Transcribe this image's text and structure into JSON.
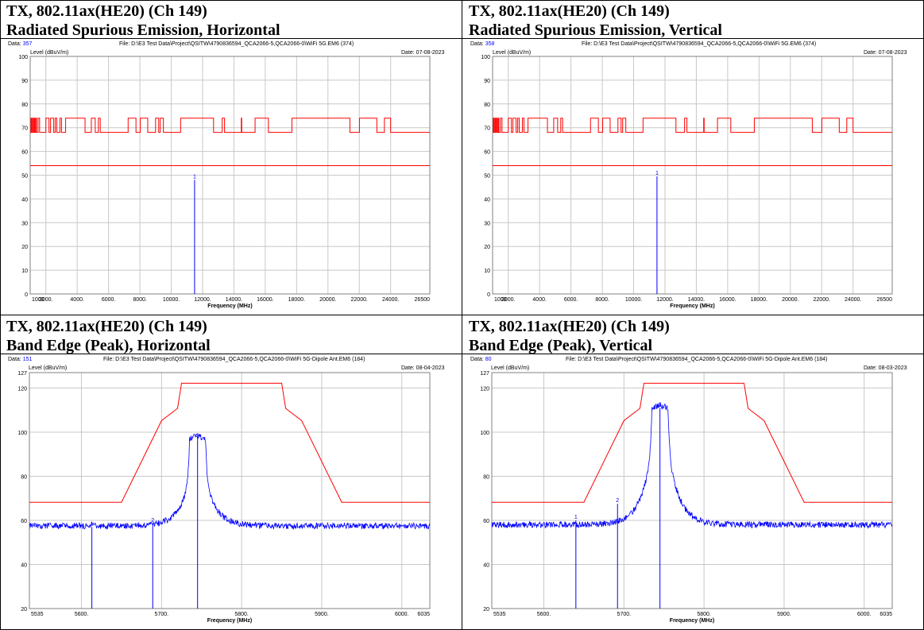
{
  "panels": [
    {
      "title_line1": "TX, 802.11ax(HE20) (Ch 149)",
      "title_line2": "Radiated Spurious Emission, Horizontal",
      "data_label": "Data:",
      "data_no": "357",
      "file_text": "File: D:\\E3 Test Data\\Project\\QSITW\\4790836594_QCA2066-5,QCA2066-0\\WiFi 5G.EM6  (374)",
      "date_text": "Date: 07-08-2023",
      "ylabel": "Level (dBuV/m)",
      "xlabel": "Frequency (MHz)"
    },
    {
      "title_line1": "TX, 802.11ax(HE20) (Ch 149)",
      "title_line2": "Radiated Spurious Emission, Vertical",
      "data_label": "Data:",
      "data_no": "358",
      "file_text": "File: D:\\E3 Test Data\\Project\\QSITW\\4790836594_QCA2066-5,QCA2066-0\\WiFi 5G.EM6  (374)",
      "date_text": "Date: 07-08-2023",
      "ylabel": "Level (dBuV/m)",
      "xlabel": "Frequency (MHz)"
    },
    {
      "title_line1": "TX, 802.11ax(HE20) (Ch 149)",
      "title_line2": "Band Edge (Peak), Horizontal",
      "data_label": "Data:",
      "data_no": "151",
      "file_text": "File: D:\\E3 Test Data\\Project\\QSITW\\4790836594_QCA2066-5,QCA2066-0\\WiFi 5G-Dipole Ant.EM6  (184)",
      "date_text": "Date: 08-04-2023",
      "ylabel": "Level (dBuV/m)",
      "xlabel": "Frequency (MHz)"
    },
    {
      "title_line1": "TX, 802.11ax(HE20) (Ch 149)",
      "title_line2": "Band Edge (Peak), Vertical",
      "data_label": "Data:",
      "data_no": "80",
      "file_text": "File: D:\\E3 Test Data\\Project\\QSITW\\4790836594_QCA2066-5,QCA2066-0\\WiFi 5G-Dipole Ant.EM6  (184)",
      "date_text": "Date: 08-03-2023",
      "ylabel": "Level (dBuV/m)",
      "xlabel": "Frequency (MHz)"
    }
  ],
  "colors": {
    "limit": "#ff0000",
    "trace": "#0000ff",
    "grid": "#c8c8c8"
  },
  "chart_data": [
    {
      "type": "line",
      "xlim": [
        1000,
        26500
      ],
      "ylim": [
        0,
        100
      ],
      "yticks": [
        0,
        10,
        20,
        30,
        40,
        50,
        60,
        70,
        80,
        90,
        100
      ],
      "xtick_values": [
        1000,
        2000,
        4000,
        6000,
        8000,
        10000,
        12000,
        14000,
        16000,
        18000,
        20000,
        22000,
        24000,
        26500
      ],
      "xtick_labels": [
        "1000",
        "2000.",
        "4000.",
        "6000.",
        "8000.",
        "10000.",
        "12000.",
        "14000.",
        "16000.",
        "18000.",
        "20000.",
        "22000.",
        "24000.",
        "26500"
      ],
      "limit_line_average": {
        "x": [
          1000,
          26500
        ],
        "y": [
          54,
          54
        ]
      },
      "limit_line_peak": {
        "x": [
          1000,
          1050,
          1050,
          1100,
          1100,
          1160,
          1160,
          1200,
          1200,
          1260,
          1260,
          1300,
          1300,
          1360,
          1360,
          1400,
          1400,
          1500,
          1500,
          1600,
          1600,
          2000,
          2000,
          2200,
          2200,
          2300,
          2300,
          2500,
          2500,
          2600,
          2600,
          2700,
          2700,
          2900,
          2900,
          3000,
          3000,
          3260,
          3260,
          4500,
          4500,
          4900,
          4900,
          5150,
          5150,
          5350,
          5350,
          5470,
          5470,
          7250,
          7250,
          7750,
          7750,
          8025,
          8025,
          8500,
          8500,
          9000,
          9000,
          9200,
          9200,
          9300,
          9300,
          9500,
          9500,
          10600,
          10600,
          12700,
          12700,
          13250,
          13250,
          13400,
          13400,
          14470,
          14470,
          14500,
          14500,
          15350,
          15350,
          16200,
          16200,
          17700,
          17700,
          21400,
          21400,
          22010,
          22010,
          23120,
          23120,
          23600,
          23600,
          24000,
          24000,
          26500
        ],
        "y": [
          68,
          68,
          74,
          74,
          68,
          68,
          74,
          74,
          68,
          68,
          74,
          74,
          68,
          68,
          74,
          74,
          68,
          68,
          74,
          74,
          68,
          68,
          74,
          74,
          68,
          68,
          74,
          74,
          68,
          68,
          74,
          74,
          68,
          68,
          74,
          74,
          68,
          68,
          74,
          74,
          68,
          68,
          74,
          74,
          68,
          68,
          74,
          74,
          68,
          68,
          74,
          74,
          68,
          68,
          74,
          74,
          68,
          68,
          74,
          74,
          68,
          68,
          74,
          74,
          68,
          68,
          74,
          74,
          68,
          68,
          74,
          74,
          68,
          68,
          74,
          74,
          68,
          68,
          74,
          74,
          68,
          68,
          74,
          74,
          68,
          68,
          74,
          74,
          68,
          68,
          74,
          74,
          68,
          68
        ]
      },
      "markers": [
        {
          "label": "1",
          "x": 11490,
          "y": 48
        }
      ]
    },
    {
      "type": "line",
      "xlim": [
        1000,
        26500
      ],
      "ylim": [
        0,
        100
      ],
      "yticks": [
        0,
        10,
        20,
        30,
        40,
        50,
        60,
        70,
        80,
        90,
        100
      ],
      "xtick_values": [
        1000,
        2000,
        4000,
        6000,
        8000,
        10000,
        12000,
        14000,
        16000,
        18000,
        20000,
        22000,
        24000,
        26500
      ],
      "xtick_labels": [
        "1000",
        "2000.",
        "4000.",
        "6000.",
        "8000.",
        "10000.",
        "12000.",
        "14000.",
        "16000.",
        "18000.",
        "20000.",
        "22000.",
        "24000.",
        "26500"
      ],
      "limit_line_average": {
        "x": [
          1000,
          26500
        ],
        "y": [
          54,
          54
        ]
      },
      "limit_line_peak": {
        "x": [
          1000,
          1050,
          1050,
          1100,
          1100,
          1160,
          1160,
          1200,
          1200,
          1260,
          1260,
          1300,
          1300,
          1360,
          1360,
          1400,
          1400,
          1500,
          1500,
          1600,
          1600,
          2000,
          2000,
          2200,
          2200,
          2300,
          2300,
          2500,
          2500,
          2600,
          2600,
          2700,
          2700,
          2900,
          2900,
          3000,
          3000,
          3260,
          3260,
          4500,
          4500,
          4900,
          4900,
          5150,
          5150,
          5350,
          5350,
          5470,
          5470,
          7250,
          7250,
          7750,
          7750,
          8025,
          8025,
          8500,
          8500,
          9000,
          9000,
          9200,
          9200,
          9300,
          9300,
          9500,
          9500,
          10600,
          10600,
          12700,
          12700,
          13250,
          13250,
          13400,
          13400,
          14470,
          14470,
          14500,
          14500,
          15350,
          15350,
          16200,
          16200,
          17700,
          17700,
          21400,
          21400,
          22010,
          22010,
          23120,
          23120,
          23600,
          23600,
          24000,
          24000,
          26500
        ],
        "y": [
          68,
          68,
          74,
          74,
          68,
          68,
          74,
          74,
          68,
          68,
          74,
          74,
          68,
          68,
          74,
          74,
          68,
          68,
          74,
          74,
          68,
          68,
          74,
          74,
          68,
          68,
          74,
          74,
          68,
          68,
          74,
          74,
          68,
          68,
          74,
          74,
          68,
          68,
          74,
          74,
          68,
          68,
          74,
          74,
          68,
          68,
          74,
          74,
          68,
          68,
          74,
          74,
          68,
          68,
          74,
          74,
          68,
          68,
          74,
          74,
          68,
          68,
          74,
          74,
          68,
          68,
          74,
          74,
          68,
          68,
          74,
          74,
          68,
          68,
          74,
          74,
          68,
          68,
          74,
          74,
          68,
          68,
          74,
          74,
          68,
          68,
          74,
          74,
          68,
          68,
          74,
          74,
          68,
          68
        ]
      },
      "markers": [
        {
          "label": "1",
          "x": 11490,
          "y": 49.5
        }
      ]
    },
    {
      "type": "line",
      "xlim": [
        5535,
        6035
      ],
      "ylim": [
        20,
        127
      ],
      "yticks": [
        20,
        40,
        60,
        80,
        100,
        120,
        127
      ],
      "xtick_values": [
        5535,
        5600,
        5700,
        5800,
        5900,
        6000,
        6035
      ],
      "xtick_labels": [
        "5535",
        "5600.",
        "5700.",
        "5800.",
        "5900.",
        "6000.",
        "6035"
      ],
      "limit_line": {
        "x": [
          5535,
          5650,
          5700,
          5720,
          5725,
          5850,
          5855,
          5875,
          5925,
          6035
        ],
        "y": [
          68.2,
          68.2,
          105.2,
          110.8,
          122.2,
          122.2,
          110.8,
          105.2,
          68.2,
          68.2
        ]
      },
      "trace": {
        "noise_floor": 57.5,
        "center": 5745,
        "occupied_bw": 20,
        "peak_level": 98,
        "skirt_level": 78
      },
      "markers": [
        {
          "label": "1",
          "x": 5613,
          "y": 57
        },
        {
          "label": "2",
          "x": 5689,
          "y": 58.5
        },
        {
          "label": "3",
          "x": 5745,
          "y": 97
        }
      ]
    },
    {
      "type": "line",
      "xlim": [
        5535,
        6035
      ],
      "ylim": [
        20,
        127
      ],
      "yticks": [
        20,
        40,
        60,
        80,
        100,
        120,
        127
      ],
      "xtick_values": [
        5535,
        5600,
        5700,
        5800,
        5900,
        6000,
        6035
      ],
      "xtick_labels": [
        "5535",
        "5600.",
        "5700.",
        "5800.",
        "5900.",
        "6000.",
        "6035"
      ],
      "limit_line": {
        "x": [
          5535,
          5650,
          5700,
          5720,
          5725,
          5850,
          5855,
          5875,
          5925,
          6035
        ],
        "y": [
          68.2,
          68.2,
          105.2,
          110.8,
          122.2,
          122.2,
          110.8,
          105.2,
          68.2,
          68.2
        ]
      },
      "trace": {
        "noise_floor": 58,
        "center": 5745,
        "occupied_bw": 20,
        "peak_level": 112,
        "skirt_level": 92
      },
      "markers": [
        {
          "label": "1",
          "x": 5640,
          "y": 60
        },
        {
          "label": "2",
          "x": 5692,
          "y": 67.5
        },
        {
          "label": "3",
          "x": 5745,
          "y": 111
        }
      ]
    }
  ]
}
